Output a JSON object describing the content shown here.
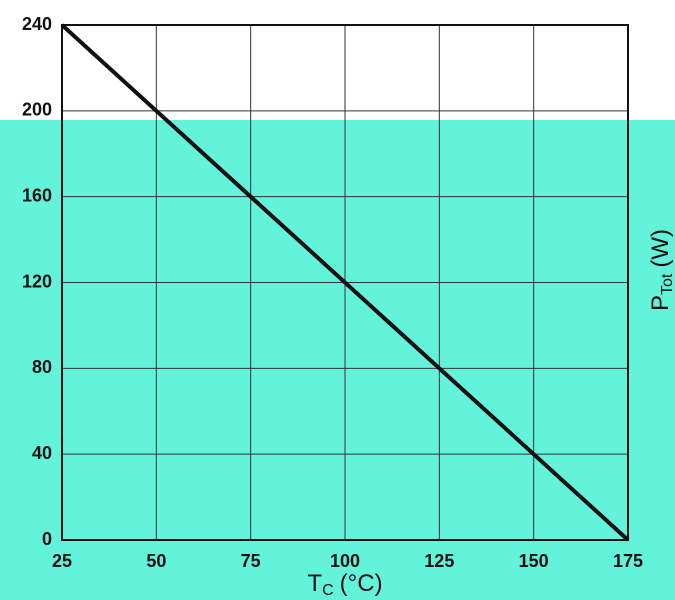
{
  "chart_data": {
    "type": "line",
    "xlabel": {
      "symbol": "T",
      "subscript": "C",
      "unit": "(°C)"
    },
    "ylabel": {
      "symbol": "P",
      "subscript": "Tot",
      "unit": "(W)"
    },
    "x": [
      25,
      175
    ],
    "series": [
      {
        "color": "#111111",
        "values": [
          240,
          0
        ]
      }
    ],
    "xlim": [
      25,
      175
    ],
    "xticks": [
      25,
      50,
      75,
      100,
      125,
      150,
      175
    ],
    "ylim": [
      0,
      240
    ],
    "yticks": [
      0,
      40,
      80,
      120,
      160,
      200,
      240
    ],
    "grid": true
  }
}
